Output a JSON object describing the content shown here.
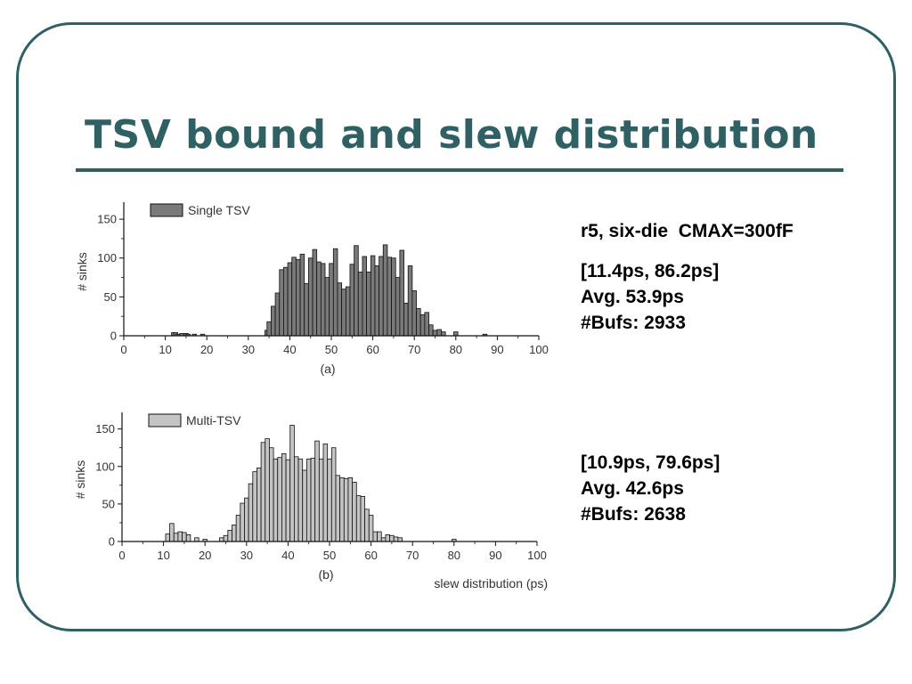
{
  "slide": {
    "title": "TSV bound and slew distribution",
    "config_note": "r5, six-die  CMAX=300fF"
  },
  "stats": {
    "single": {
      "range": "[11.4ps, 86.2ps]",
      "avg": "Avg. 53.9ps",
      "bufs": "#Bufs: 2933"
    },
    "multi": {
      "range": "[10.9ps, 79.6ps]",
      "avg": "Avg. 42.6ps",
      "bufs": "#Bufs: 2638"
    }
  },
  "colors": {
    "frame": "#2f6164",
    "single_fill": "#7a7a7a",
    "multi_fill": "#c4c4c4",
    "stroke": "#111111"
  },
  "chart_data": [
    {
      "type": "bar",
      "caption": "(a)",
      "ylabel": "# sinks",
      "xlabel": "",
      "xlim": [
        0,
        100
      ],
      "ylim": [
        0,
        165
      ],
      "xticks": [
        0,
        10,
        20,
        30,
        40,
        50,
        60,
        70,
        80,
        90,
        100
      ],
      "yticks": [
        0,
        50,
        100,
        150
      ],
      "legend": {
        "label": "Single TSV",
        "placement": "top-left"
      },
      "series": [
        {
          "name": "Single TSV",
          "x": [
            12,
            12.5,
            13,
            14,
            15,
            15.5,
            17,
            19,
            34.5,
            35,
            36,
            37,
            38,
            39,
            40,
            41,
            42,
            43,
            44,
            45,
            46,
            47,
            48,
            49,
            50,
            51,
            52,
            53,
            54,
            55,
            56,
            57,
            58,
            59,
            60,
            61,
            62,
            63,
            64,
            65,
            66,
            67,
            68,
            69,
            70,
            71,
            72,
            73,
            74,
            75,
            76,
            77,
            80,
            87
          ],
          "values": [
            4,
            4,
            2,
            3,
            3,
            2,
            2,
            2,
            7,
            18,
            38,
            55,
            85,
            88,
            94,
            101,
            98,
            105,
            67,
            100,
            111,
            95,
            93,
            75,
            93,
            112,
            68,
            60,
            63,
            92,
            116,
            82,
            102,
            82,
            103,
            90,
            102,
            117,
            101,
            100,
            75,
            110,
            42,
            90,
            58,
            35,
            27,
            30,
            14,
            7,
            8,
            5,
            5,
            2
          ]
        }
      ]
    },
    {
      "type": "bar",
      "caption": "(b)",
      "ylabel": "# sinks",
      "xlabel": "slew distribution (ps)",
      "xlim": [
        0,
        100
      ],
      "ylim": [
        0,
        165
      ],
      "xticks": [
        0,
        10,
        20,
        30,
        40,
        50,
        60,
        70,
        80,
        90,
        100
      ],
      "yticks": [
        0,
        50,
        100,
        150
      ],
      "legend": {
        "label": "Multi-TSV",
        "placement": "top-left"
      },
      "series": [
        {
          "name": "Multi-TSV",
          "x": [
            11,
            12,
            13,
            14,
            15,
            16,
            18,
            20,
            24,
            25,
            26,
            27,
            28,
            29,
            30,
            31,
            32,
            33,
            34,
            35,
            36,
            37,
            38,
            39,
            40,
            41,
            42,
            43,
            44,
            45,
            46,
            47,
            48,
            49,
            50,
            51,
            52,
            53,
            54,
            55,
            56,
            57,
            58,
            59,
            60,
            61,
            62,
            63,
            64,
            65,
            66,
            67,
            80
          ],
          "values": [
            10,
            24,
            11,
            13,
            12,
            9,
            5,
            3,
            5,
            8,
            15,
            22,
            35,
            51,
            58,
            77,
            93,
            98,
            132,
            137,
            125,
            110,
            112,
            117,
            109,
            155,
            113,
            110,
            95,
            110,
            111,
            134,
            110,
            130,
            110,
            125,
            88,
            85,
            84,
            85,
            79,
            61,
            60,
            43,
            35,
            13,
            13,
            5,
            9,
            8,
            6,
            5,
            3
          ]
        }
      ]
    }
  ]
}
